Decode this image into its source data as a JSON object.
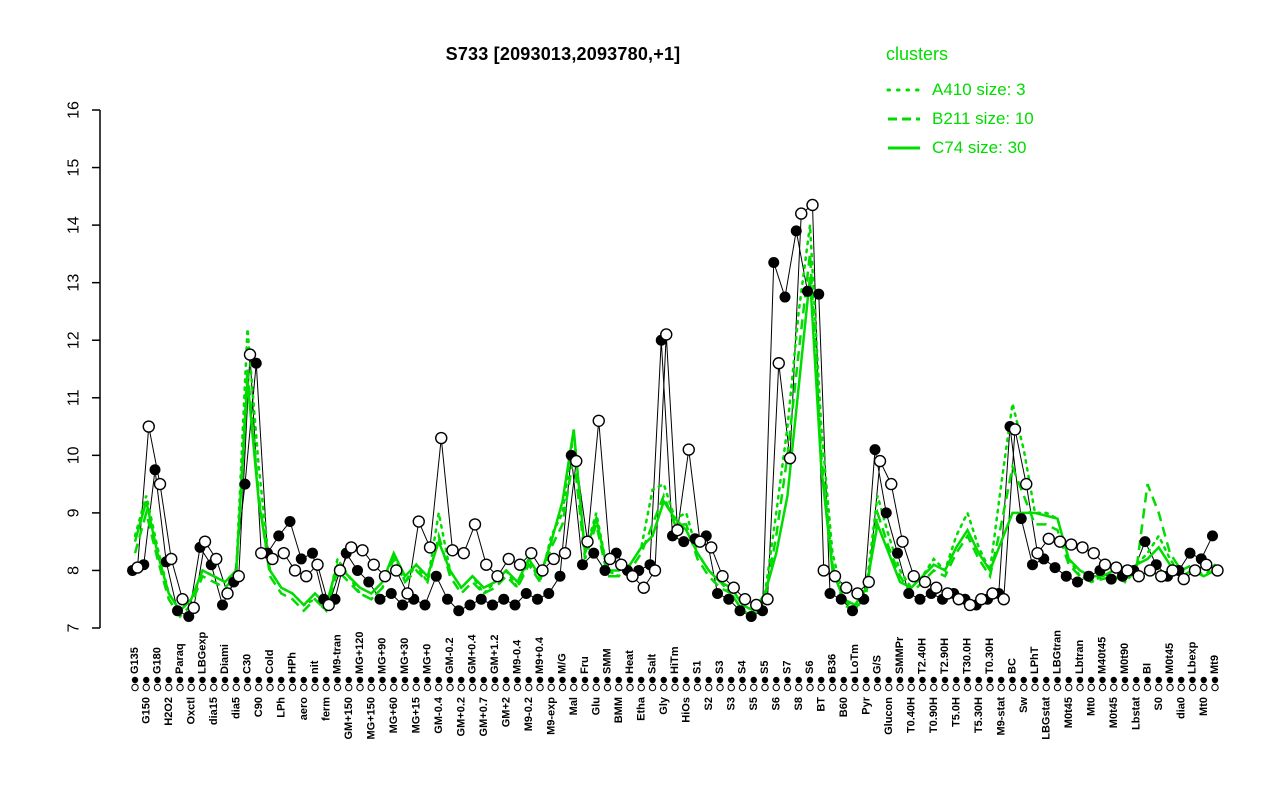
{
  "title": "S733 [2093013,2093780,+1]",
  "legend": {
    "title": "clusters",
    "entries": [
      {
        "label": "A410 size: 3",
        "style": "dotted"
      },
      {
        "label": "B211 size: 10",
        "style": "dashed"
      },
      {
        "label": "C74 size: 30",
        "style": "solid"
      }
    ]
  },
  "colors": {
    "cluster": "#00DC00",
    "points": "#000000",
    "background": "#ffffff"
  },
  "chart_data": {
    "type": "line",
    "title": "S733 [2093013,2093780,+1]",
    "ylim": [
      7,
      16
    ],
    "yticks": [
      7,
      8,
      9,
      10,
      11,
      12,
      13,
      14,
      15,
      16
    ],
    "grid": false,
    "legend_position": "top-right",
    "categories": [
      "G135",
      "G150",
      "G180",
      "H2O2",
      "Paraq",
      "Oxctl",
      "LBGexp",
      "dia15",
      "Diami",
      "dia5",
      "C30",
      "C90",
      "Cold",
      "LPh",
      "HPh",
      "aero",
      "nit",
      "ferm",
      "M9-tran",
      "GM+150",
      "MG+120",
      "MG+150",
      "MG+90",
      "MG+60",
      "MG+30",
      "MG+15",
      "MG+0",
      "GM-0.4",
      "GM-0.2",
      "GM+0.2",
      "GM+0.4",
      "GM+0.7",
      "GM+1.2",
      "GM+2",
      "M9-0.4",
      "M9-0.2",
      "M9+0.4",
      "M9-exp",
      "M/G",
      "Mal",
      "Fru",
      "Glu",
      "SMM",
      "BMM",
      "Heat",
      "Etha",
      "Salt",
      "Gly",
      "HiTm",
      "HiOs",
      "S1",
      "S2",
      "S3",
      "S3",
      "S4",
      "S5",
      "S5",
      "S6",
      "S7",
      "S8",
      "S6",
      "BT",
      "B36",
      "B60",
      "LoTm",
      "Pyr",
      "G/S",
      "Glucon",
      "SMMPr",
      "T0.40H",
      "T2.40H",
      "T0.90H",
      "T2.90H",
      "T5.0H",
      "T30.0H",
      "T5.30H",
      "T0.30H",
      "M9-stat",
      "BC",
      "Sw",
      "LPhT",
      "LBGstat",
      "LBGtran",
      "M0t45",
      "Lbtran",
      "Mt0",
      "M40t45",
      "M0t45",
      "M0t90",
      "Lbstat",
      "BI",
      "S0",
      "M0t45",
      "dia0",
      "Lbexp",
      "Mt0",
      "Mt9"
    ],
    "series": [
      {
        "name": "probe-2093013",
        "kind": "points",
        "marker": "filled-circle",
        "color": "#000000",
        "values": [
          8.0,
          8.1,
          9.75,
          8.15,
          7.3,
          7.2,
          8.4,
          8.1,
          7.4,
          7.8,
          9.5,
          11.6,
          8.3,
          8.6,
          8.85,
          8.2,
          8.3,
          7.5,
          7.5,
          8.3,
          8.0,
          7.8,
          7.5,
          7.6,
          7.4,
          7.5,
          7.4,
          7.9,
          7.5,
          7.3,
          7.4,
          7.5,
          7.4,
          7.5,
          7.4,
          7.6,
          7.5,
          7.6,
          7.9,
          10.0,
          8.1,
          8.3,
          8.0,
          8.3,
          8.0,
          8.0,
          8.1,
          12.0,
          8.6,
          8.5,
          8.55,
          8.6,
          7.6,
          7.5,
          7.3,
          7.2,
          7.3,
          13.35,
          12.75,
          13.9,
          12.85,
          12.8,
          7.6,
          7.5,
          7.3,
          7.5,
          10.1,
          9.0,
          8.3,
          7.6,
          7.5,
          7.6,
          7.5,
          7.6,
          7.5,
          7.4,
          7.5,
          7.6,
          10.5,
          8.9,
          8.1,
          8.2,
          8.05,
          7.9,
          7.8,
          7.9,
          8.0,
          7.85,
          7.9,
          8.0,
          8.5,
          8.1,
          7.9,
          8.0,
          8.3,
          8.2,
          8.6
        ]
      },
      {
        "name": "probe-2093780",
        "kind": "points",
        "marker": "open-circle",
        "color": "#000000",
        "values": [
          8.05,
          10.5,
          9.5,
          8.2,
          7.5,
          7.35,
          8.5,
          8.2,
          7.6,
          7.9,
          11.75,
          8.3,
          8.2,
          8.3,
          8.0,
          7.9,
          8.1,
          7.4,
          8.0,
          8.4,
          8.35,
          8.1,
          7.9,
          8.0,
          7.6,
          8.85,
          8.4,
          10.3,
          8.35,
          8.3,
          8.8,
          8.1,
          7.9,
          8.2,
          8.1,
          8.3,
          8.0,
          8.2,
          8.3,
          9.9,
          8.5,
          10.6,
          8.2,
          8.1,
          7.9,
          7.7,
          8.0,
          12.1,
          8.7,
          10.1,
          8.5,
          8.4,
          7.9,
          7.7,
          7.5,
          7.4,
          7.5,
          11.6,
          9.95,
          14.2,
          14.35,
          8.0,
          7.9,
          7.7,
          7.6,
          7.8,
          9.9,
          9.5,
          8.5,
          7.9,
          7.8,
          7.7,
          7.6,
          7.5,
          7.4,
          7.5,
          7.6,
          7.5,
          10.45,
          9.5,
          8.3,
          8.55,
          8.5,
          8.45,
          8.4,
          8.3,
          8.1,
          8.05,
          8.0,
          7.9,
          8.0,
          7.9,
          8.0,
          7.85,
          8.0,
          8.1,
          8.0
        ]
      },
      {
        "name": "A410",
        "kind": "line",
        "style": "dotted",
        "size": 3,
        "color": "#00DC00",
        "values": [
          8.6,
          9.3,
          8.4,
          7.6,
          7.3,
          7.5,
          8.0,
          7.9,
          7.8,
          8.0,
          12.2,
          9.8,
          8.0,
          7.7,
          7.6,
          7.4,
          7.5,
          7.3,
          8.2,
          7.9,
          7.6,
          7.5,
          7.7,
          8.3,
          7.8,
          8.1,
          7.8,
          9.0,
          8.0,
          7.7,
          7.9,
          7.6,
          7.8,
          8.0,
          7.7,
          8.2,
          7.8,
          8.6,
          9.0,
          10.4,
          8.3,
          9.0,
          8.0,
          7.9,
          8.1,
          8.4,
          9.4,
          9.5,
          8.9,
          9.0,
          8.3,
          8.0,
          7.8,
          7.6,
          7.3,
          7.2,
          7.6,
          9.0,
          10.5,
          12.5,
          14.0,
          10.5,
          8.3,
          7.5,
          7.3,
          7.7,
          9.3,
          8.6,
          8.0,
          7.7,
          7.9,
          8.2,
          8.0,
          8.6,
          9.0,
          8.4,
          8.0,
          9.5,
          10.9,
          10.1,
          9.0,
          9.0,
          8.9,
          8.2,
          7.9,
          7.8,
          7.9,
          8.0,
          7.8,
          8.1,
          8.3,
          8.6,
          8.2,
          7.9,
          8.0,
          7.9,
          8.1
        ]
      },
      {
        "name": "B211",
        "kind": "line",
        "style": "dashed",
        "size": 10,
        "color": "#00DC00",
        "values": [
          8.3,
          9.0,
          8.2,
          7.5,
          7.2,
          7.4,
          7.9,
          7.8,
          7.7,
          7.9,
          11.5,
          9.3,
          7.9,
          7.6,
          7.5,
          7.3,
          7.5,
          7.3,
          8.0,
          7.8,
          7.6,
          7.5,
          7.7,
          8.2,
          7.8,
          8.0,
          7.8,
          8.6,
          7.9,
          7.6,
          7.8,
          7.6,
          7.7,
          7.9,
          7.7,
          8.1,
          7.8,
          8.4,
          8.8,
          10.0,
          8.2,
          8.8,
          7.9,
          7.9,
          8.0,
          8.3,
          8.8,
          9.3,
          8.8,
          8.8,
          8.2,
          7.9,
          7.7,
          7.6,
          7.3,
          7.2,
          7.5,
          8.6,
          10.0,
          11.8,
          13.5,
          10.0,
          8.1,
          7.4,
          7.3,
          7.6,
          9.0,
          8.4,
          7.9,
          7.6,
          7.8,
          8.0,
          7.9,
          8.3,
          8.6,
          8.2,
          7.9,
          8.8,
          9.8,
          9.3,
          8.8,
          8.8,
          8.7,
          8.1,
          7.9,
          7.8,
          7.85,
          7.9,
          7.8,
          8.0,
          9.5,
          9.0,
          8.3,
          8.0,
          8.1,
          7.9,
          8.0
        ]
      },
      {
        "name": "C74",
        "kind": "line",
        "style": "solid",
        "size": 30,
        "color": "#00DC00",
        "values": [
          8.5,
          9.2,
          8.3,
          7.6,
          7.3,
          7.5,
          8.0,
          7.9,
          7.8,
          8.0,
          11.3,
          9.2,
          8.0,
          7.7,
          7.6,
          7.4,
          7.6,
          7.4,
          8.1,
          7.9,
          7.7,
          7.6,
          7.8,
          8.3,
          7.9,
          8.1,
          7.9,
          8.5,
          8.0,
          7.7,
          7.9,
          7.7,
          7.8,
          8.0,
          7.8,
          8.2,
          7.9,
          8.5,
          9.2,
          10.45,
          8.3,
          8.9,
          8.0,
          8.0,
          8.1,
          8.4,
          8.6,
          9.2,
          8.9,
          8.7,
          8.3,
          8.0,
          7.8,
          7.7,
          7.4,
          7.3,
          7.6,
          8.3,
          9.3,
          11.2,
          13.1,
          9.8,
          8.0,
          7.5,
          7.4,
          7.7,
          8.8,
          8.3,
          7.8,
          7.7,
          7.9,
          8.1,
          8.0,
          8.4,
          8.7,
          8.3,
          8.0,
          8.5,
          9.0,
          9.0,
          9.0,
          8.95,
          8.9,
          8.2,
          8.0,
          7.9,
          7.9,
          8.0,
          7.9,
          8.1,
          8.2,
          8.4,
          8.1,
          7.9,
          8.0,
          7.9,
          8.0
        ]
      }
    ],
    "axis_strip": {
      "rows": [
        "filled",
        "open"
      ]
    }
  }
}
